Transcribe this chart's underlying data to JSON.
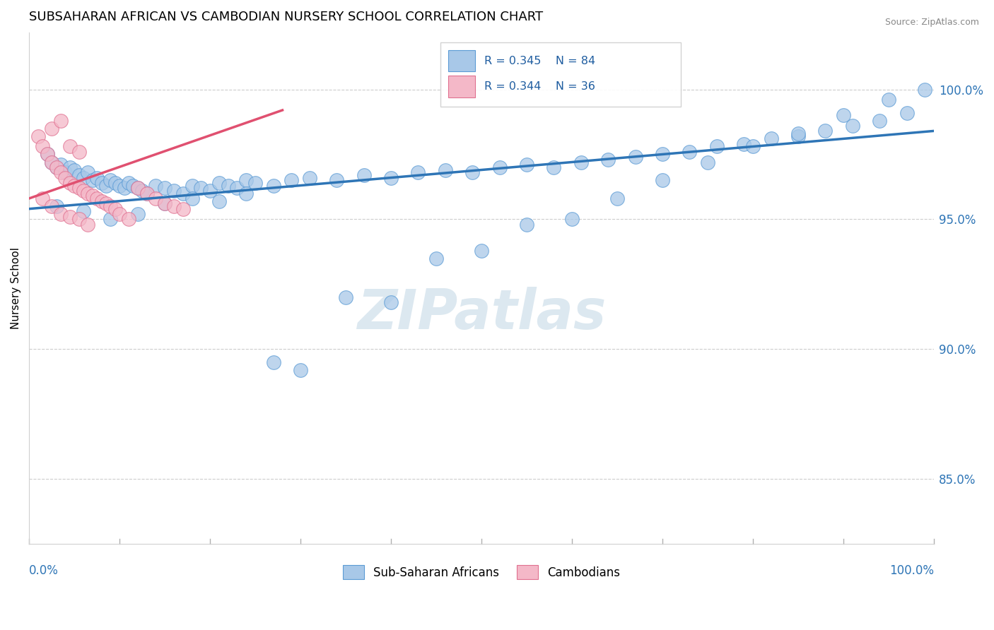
{
  "title": "SUBSAHARAN AFRICAN VS CAMBODIAN NURSERY SCHOOL CORRELATION CHART",
  "source": "Source: ZipAtlas.com",
  "ylabel": "Nursery School",
  "legend_blue_r": "R = 0.345",
  "legend_blue_n": "N = 84",
  "legend_pink_r": "R = 0.344",
  "legend_pink_n": "N = 36",
  "legend_blue_label": "Sub-Saharan Africans",
  "legend_pink_label": "Cambodians",
  "ytick_labels": [
    "85.0%",
    "90.0%",
    "95.0%",
    "100.0%"
  ],
  "ytick_values": [
    0.85,
    0.9,
    0.95,
    1.0
  ],
  "xmin": 0.0,
  "xmax": 1.0,
  "ymin": 0.825,
  "ymax": 1.022,
  "blue_color": "#a8c8e8",
  "blue_edge_color": "#5b9bd5",
  "pink_color": "#f4b8c8",
  "pink_edge_color": "#e07090",
  "trend_blue_color": "#2e75b6",
  "trend_pink_color": "#e05070",
  "grid_color": "#c0c0c0",
  "watermark_color": "#dce8f0",
  "blue_scatter_x": [
    0.02,
    0.025,
    0.03,
    0.035,
    0.04,
    0.045,
    0.05,
    0.055,
    0.06,
    0.065,
    0.07,
    0.075,
    0.08,
    0.085,
    0.09,
    0.095,
    0.1,
    0.105,
    0.11,
    0.115,
    0.12,
    0.125,
    0.13,
    0.14,
    0.15,
    0.16,
    0.17,
    0.18,
    0.19,
    0.2,
    0.21,
    0.22,
    0.23,
    0.24,
    0.25,
    0.27,
    0.29,
    0.31,
    0.34,
    0.37,
    0.4,
    0.43,
    0.46,
    0.49,
    0.52,
    0.55,
    0.58,
    0.61,
    0.64,
    0.67,
    0.7,
    0.73,
    0.76,
    0.79,
    0.82,
    0.85,
    0.88,
    0.91,
    0.94,
    0.97,
    0.99,
    0.03,
    0.06,
    0.09,
    0.12,
    0.15,
    0.18,
    0.21,
    0.24,
    0.27,
    0.3,
    0.35,
    0.4,
    0.45,
    0.5,
    0.55,
    0.6,
    0.65,
    0.7,
    0.75,
    0.8,
    0.85,
    0.9,
    0.95
  ],
  "blue_scatter_y": [
    0.975,
    0.972,
    0.97,
    0.971,
    0.968,
    0.97,
    0.969,
    0.967,
    0.966,
    0.968,
    0.965,
    0.966,
    0.964,
    0.963,
    0.965,
    0.964,
    0.963,
    0.962,
    0.964,
    0.963,
    0.962,
    0.961,
    0.96,
    0.963,
    0.962,
    0.961,
    0.96,
    0.963,
    0.962,
    0.961,
    0.964,
    0.963,
    0.962,
    0.965,
    0.964,
    0.963,
    0.965,
    0.966,
    0.965,
    0.967,
    0.966,
    0.968,
    0.969,
    0.968,
    0.97,
    0.971,
    0.97,
    0.972,
    0.973,
    0.974,
    0.975,
    0.976,
    0.978,
    0.979,
    0.981,
    0.982,
    0.984,
    0.986,
    0.988,
    0.991,
    1.0,
    0.955,
    0.953,
    0.95,
    0.952,
    0.956,
    0.958,
    0.957,
    0.96,
    0.895,
    0.892,
    0.92,
    0.918,
    0.935,
    0.938,
    0.948,
    0.95,
    0.958,
    0.965,
    0.972,
    0.978,
    0.983,
    0.99,
    0.996
  ],
  "pink_scatter_x": [
    0.01,
    0.015,
    0.02,
    0.025,
    0.03,
    0.035,
    0.04,
    0.045,
    0.05,
    0.055,
    0.06,
    0.065,
    0.07,
    0.075,
    0.08,
    0.085,
    0.09,
    0.095,
    0.1,
    0.11,
    0.12,
    0.13,
    0.14,
    0.15,
    0.16,
    0.17,
    0.025,
    0.035,
    0.045,
    0.055,
    0.015,
    0.025,
    0.035,
    0.045,
    0.055,
    0.065
  ],
  "pink_scatter_y": [
    0.982,
    0.978,
    0.975,
    0.972,
    0.97,
    0.968,
    0.966,
    0.964,
    0.963,
    0.962,
    0.961,
    0.96,
    0.959,
    0.958,
    0.957,
    0.956,
    0.955,
    0.954,
    0.952,
    0.95,
    0.962,
    0.96,
    0.958,
    0.956,
    0.955,
    0.954,
    0.985,
    0.988,
    0.978,
    0.976,
    0.958,
    0.955,
    0.952,
    0.951,
    0.95,
    0.948
  ],
  "blue_trend_x0": 0.0,
  "blue_trend_x1": 1.0,
  "blue_trend_y0": 0.954,
  "blue_trend_y1": 0.984,
  "pink_trend_x0": 0.0,
  "pink_trend_x1": 0.28,
  "pink_trend_y0": 0.958,
  "pink_trend_y1": 0.992
}
